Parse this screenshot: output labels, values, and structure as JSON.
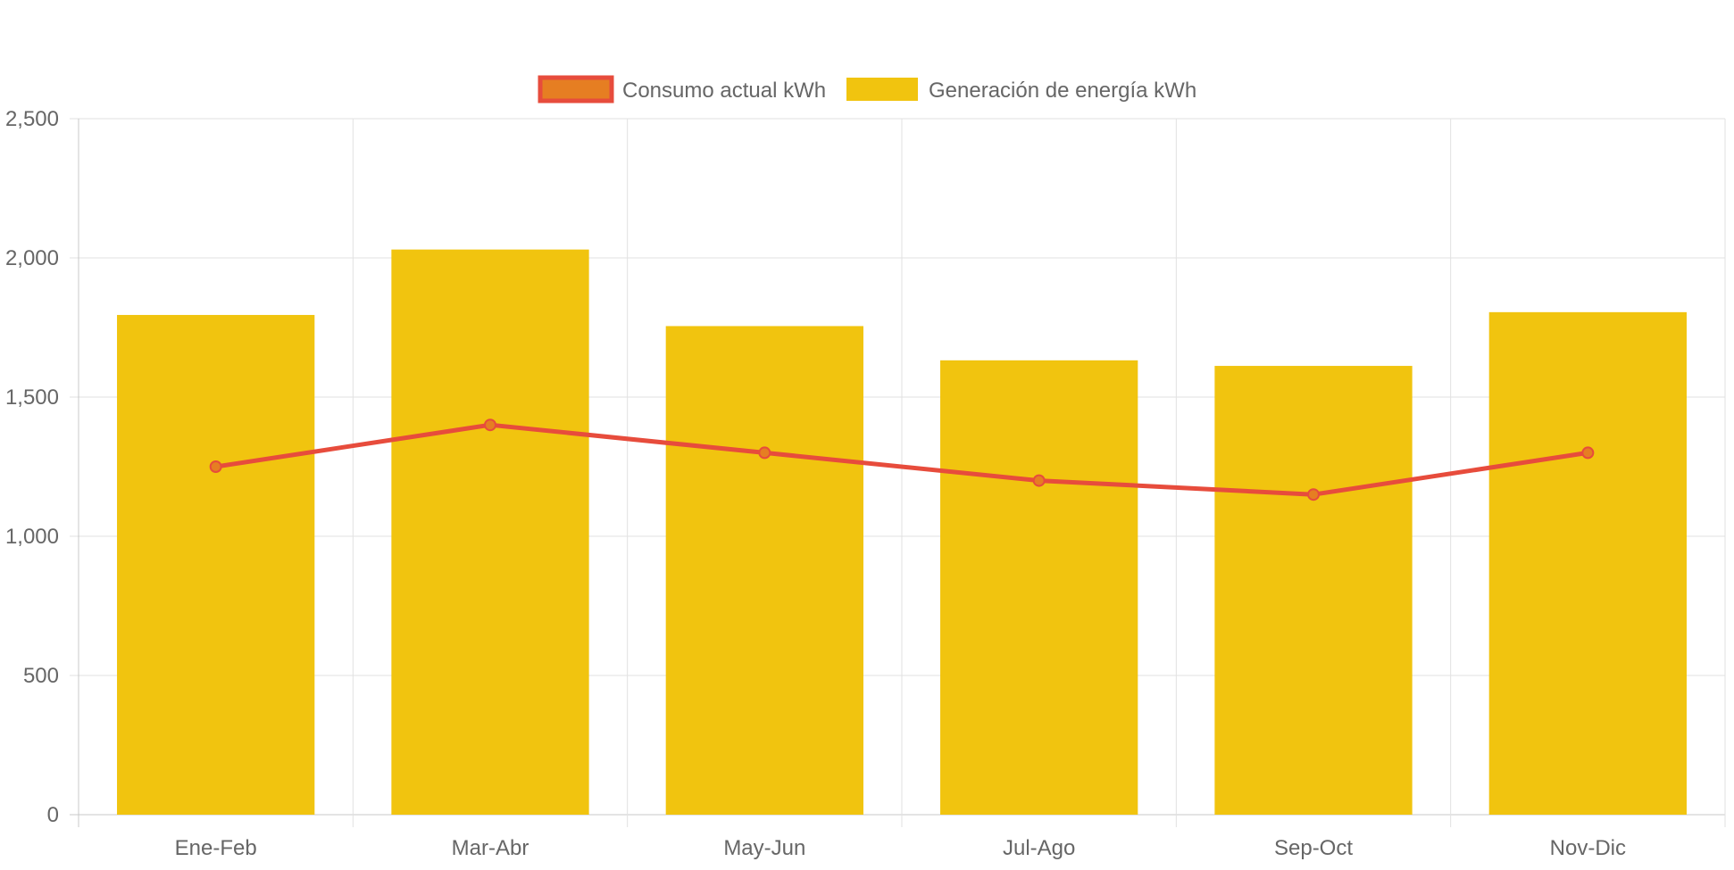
{
  "chart_data": {
    "type": "bar",
    "categories": [
      "Ene-Feb",
      "Mar-Abr",
      "May-Jun",
      "Jul-Ago",
      "Sep-Oct",
      "Nov-Dic"
    ],
    "series": [
      {
        "name": "Consumo actual kWh",
        "type": "line",
        "values": [
          1250,
          1400,
          1300,
          1200,
          1150,
          1300
        ],
        "color": "#e74c3c",
        "point_fill": "#e67e22"
      },
      {
        "name": "Generación de energía kWh",
        "type": "bar",
        "values": [
          1795,
          2030,
          1755,
          1632,
          1612,
          1805
        ],
        "color": "#f1c40f"
      }
    ],
    "ylim": [
      0,
      2500
    ],
    "yticks": [
      0,
      500,
      1000,
      1500,
      2000,
      2500
    ],
    "ytick_labels": [
      "0",
      "500",
      "1,000",
      "1,500",
      "2,000",
      "2,500"
    ],
    "grid": true,
    "legend_position": "top-center",
    "title": "",
    "xlabel": "",
    "ylabel": ""
  }
}
